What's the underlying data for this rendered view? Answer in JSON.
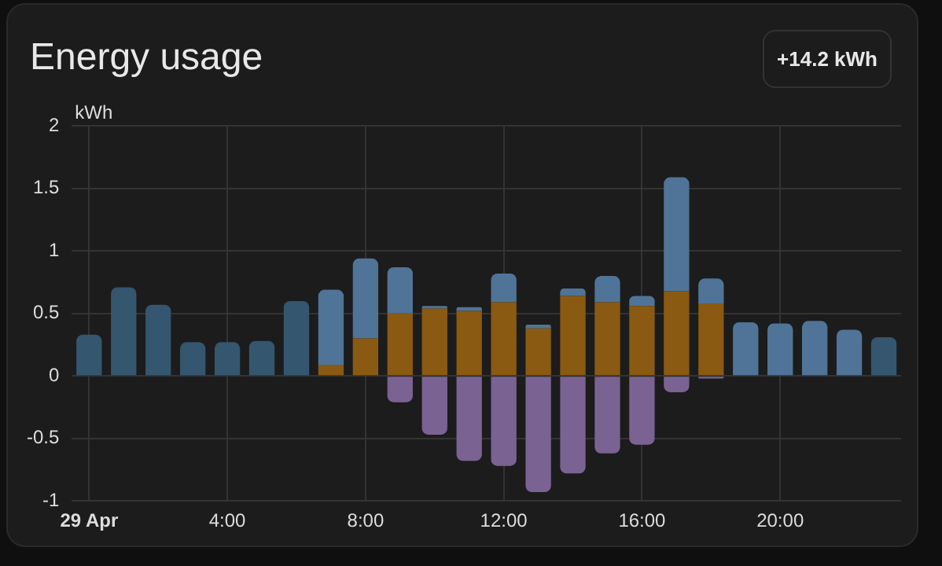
{
  "chart_data": {
    "type": "bar",
    "title": "Energy usage",
    "ylabel": "kWh",
    "annotations": [
      "+14.2 kWh"
    ],
    "categories": [
      "29 Apr",
      null,
      null,
      null,
      "4:00",
      null,
      null,
      null,
      "8:00",
      null,
      null,
      null,
      "12:00",
      null,
      null,
      null,
      "16:00",
      null,
      null,
      null,
      "20:00",
      null,
      null,
      null
    ],
    "stacked": true,
    "series": [
      {
        "color": "#8a5a12",
        "values": [
          0,
          0,
          0,
          0,
          0,
          0,
          0,
          0.09,
          0.3,
          0.5,
          0.54,
          0.52,
          0.59,
          0.38,
          0.64,
          0.59,
          0.56,
          0.68,
          0.58,
          0,
          0,
          0,
          0,
          0
        ]
      },
      {
        "colors": [
          "#34566f",
          "#34566f",
          "#34566f",
          "#34566f",
          "#34566f",
          "#34566f",
          "#34566f",
          "#4f7498",
          "#4f7498",
          "#4f7498",
          "#4f7498",
          "#4f7498",
          "#4f7498",
          "#4f7498",
          "#4f7498",
          "#4f7498",
          "#4f7498",
          "#4f7498",
          "#4f7498",
          "#4f7498",
          "#4f7498",
          "#4f7498",
          "#4f7498",
          "#34566f"
        ],
        "values": [
          0.33,
          0.71,
          0.57,
          0.27,
          0.27,
          0.28,
          0.6,
          0.6,
          0.64,
          0.37,
          0.02,
          0.03,
          0.23,
          0.03,
          0.06,
          0.21,
          0.08,
          0.91,
          0.2,
          0.43,
          0.42,
          0.44,
          0.37,
          0.31
        ]
      },
      {
        "color": "#7a6292",
        "values": [
          0,
          0,
          0,
          0,
          0,
          0,
          0,
          0,
          0,
          -0.21,
          -0.47,
          -0.68,
          -0.72,
          -0.93,
          -0.78,
          -0.62,
          -0.55,
          -0.13,
          -0.02,
          0,
          0,
          0,
          0,
          0
        ]
      }
    ],
    "ylim": [
      -1,
      2
    ],
    "yticks": [
      -1,
      -0.5,
      0,
      0.5,
      1,
      1.5,
      2
    ],
    "grid": true,
    "legend": false
  }
}
